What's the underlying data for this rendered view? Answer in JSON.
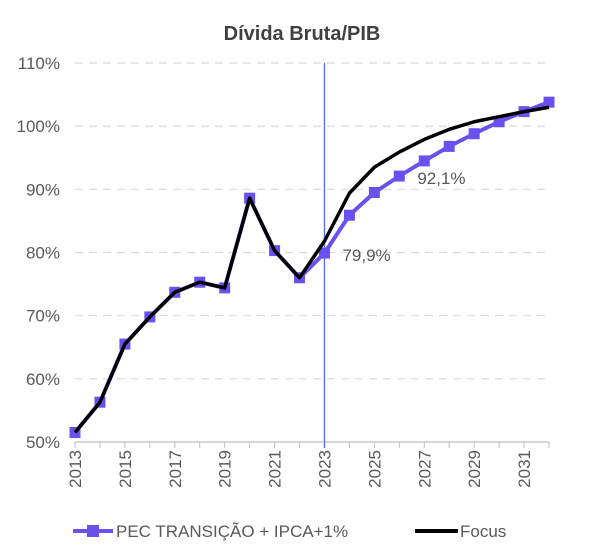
{
  "chart_data": {
    "type": "line",
    "title": "Dívida Bruta/PIB",
    "x": [
      2013,
      2014,
      2015,
      2016,
      2017,
      2018,
      2019,
      2020,
      2021,
      2022,
      2023,
      2024,
      2025,
      2026,
      2027,
      2028,
      2029,
      2030,
      2031,
      2032
    ],
    "x_tick_labels": [
      "2013",
      "2015",
      "2017",
      "2019",
      "2021",
      "2023",
      "2025",
      "2027",
      "2029",
      "2031"
    ],
    "y_tick_labels": [
      "50%",
      "60%",
      "70%",
      "80%",
      "90%",
      "100%",
      "110%"
    ],
    "ylim": [
      50,
      110
    ],
    "grid": true,
    "legend_position": "bottom",
    "vertical_marker_x": 2023,
    "series": [
      {
        "name": "PEC TRANSIÇÃO + IPCA+1%",
        "color": "#6b50f0",
        "marker": "square",
        "values": [
          51.5,
          56.3,
          65.5,
          69.8,
          73.7,
          75.3,
          74.4,
          88.6,
          80.3,
          76.0,
          79.9,
          85.9,
          89.5,
          92.1,
          94.5,
          96.8,
          98.8,
          100.7,
          102.3,
          103.8
        ]
      },
      {
        "name": "Focus",
        "color": "#000000",
        "marker": "none",
        "values": [
          51.5,
          56.3,
          65.5,
          69.8,
          73.7,
          75.3,
          74.4,
          88.6,
          80.3,
          76.0,
          81.8,
          89.4,
          93.5,
          95.9,
          97.9,
          99.5,
          100.7,
          101.5,
          102.3,
          103.0
        ]
      }
    ],
    "annotations": [
      {
        "text": "79,9%",
        "x": 2023,
        "y": 79.9
      },
      {
        "text": "92,1%",
        "x": 2026,
        "y": 92.1
      }
    ]
  }
}
